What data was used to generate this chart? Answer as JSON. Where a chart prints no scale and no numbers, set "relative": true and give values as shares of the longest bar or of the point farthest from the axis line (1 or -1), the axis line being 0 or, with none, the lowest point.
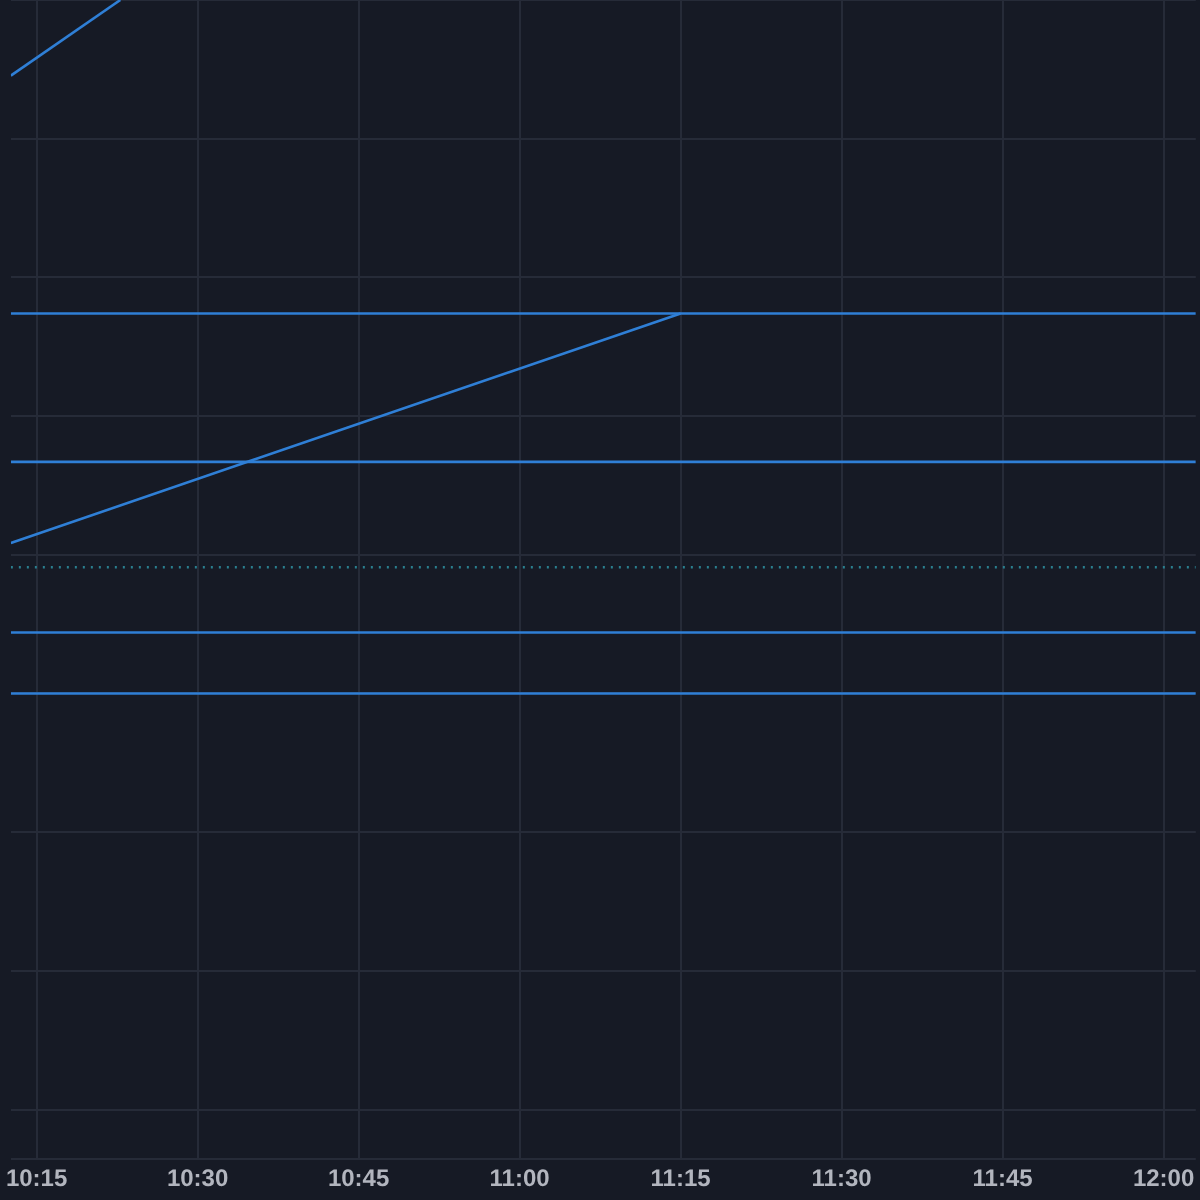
{
  "chart_data": {
    "type": "line",
    "relative": true,
    "grid": true,
    "legend": false,
    "marker": "none",
    "tick_labels": "x",
    "xlim": [
      10.21,
      12.05
    ],
    "xticks": [
      {
        "value": 10.25,
        "label": "10:15"
      },
      {
        "value": 10.5,
        "label": "10:30"
      },
      {
        "value": 10.75,
        "label": "10:45"
      },
      {
        "value": 11,
        "label": "11:00"
      },
      {
        "value": 11.25,
        "label": "11:15"
      },
      {
        "value": 11.5,
        "label": "11:30"
      },
      {
        "value": 11.75,
        "label": "11:45"
      },
      {
        "value": 12,
        "label": "12:00"
      }
    ],
    "series": [
      {
        "color": "#2f7fd6",
        "x": [
          10.21,
          10.38
        ],
        "values": [
          0.891,
          1
        ]
      },
      {
        "color": "#2f7fd6",
        "x": [
          10.21,
          11.25
        ],
        "values": [
          0.217,
          0.548
        ]
      },
      {
        "color": "#2f7fd6",
        "x": [
          10.21,
          12.05
        ],
        "values": [
          0.548,
          0.548
        ]
      },
      {
        "color": "#2f7fd6",
        "x": [
          10.21,
          12.05
        ],
        "values": [
          0.334,
          0.334
        ]
      },
      {
        "color": "#2a7f8f",
        "line_style": "dotted",
        "x": [
          10.21,
          12.05
        ],
        "values": [
          0.182,
          0.182
        ]
      },
      {
        "color": "#2f7fd6",
        "x": [
          10.21,
          12.05
        ],
        "values": [
          0.088,
          0.088
        ]
      },
      {
        "color": "#2f7fd6",
        "x": [
          10.21,
          12.05
        ],
        "values": [
          0,
          0
        ]
      }
    ]
  }
}
